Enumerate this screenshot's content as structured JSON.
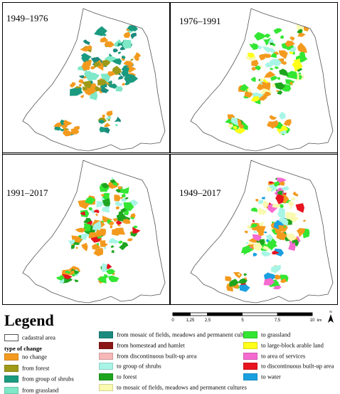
{
  "panels": [
    {
      "title": "1949–1976"
    },
    {
      "title": "1976–1991"
    },
    {
      "title": "1991–2017"
    },
    {
      "title": "1949–2017"
    }
  ],
  "legend": {
    "title": "Legend",
    "cadastral": "cadastral area",
    "type_heading": "type of change",
    "col1": [
      {
        "label": "no change",
        "color": "#f39a1e"
      },
      {
        "label": "from forest",
        "color": "#9e9a17"
      },
      {
        "label": "from  group of shrubs",
        "color": "#1a9a7f"
      },
      {
        "label": "from grassland",
        "color": "#7ee8c7"
      }
    ],
    "col2": [
      {
        "label": "from mosaic of fields, meadows and permanent cultures",
        "color": "#1b8a7e"
      },
      {
        "label": "from homestead and hamlet",
        "color": "#8b1616"
      },
      {
        "label": "from discontinuous built-up area",
        "color": "#f6b8b8"
      },
      {
        "label": "to group of shrubs",
        "color": "#a8f5e6"
      },
      {
        "label": "to forest",
        "color": "#1ea51e"
      },
      {
        "label": "to mosaic of fields, meadows and permanent cultures",
        "color": "#fafab0"
      }
    ],
    "col3": [
      {
        "label": "to grassland",
        "color": "#33e633"
      },
      {
        "label": "to large-block arable land",
        "color": "#ffff1a"
      },
      {
        "label": "to area of services",
        "color": "#f56ad0"
      },
      {
        "label": "to discontinuous built-up area",
        "color": "#e8141e"
      },
      {
        "label": "to water",
        "color": "#1aa0e0"
      }
    ]
  },
  "scale": {
    "ticks": [
      "0",
      "1,25",
      "2,5",
      "5",
      "7,5",
      "10"
    ],
    "unit": "km",
    "north": "N"
  }
}
